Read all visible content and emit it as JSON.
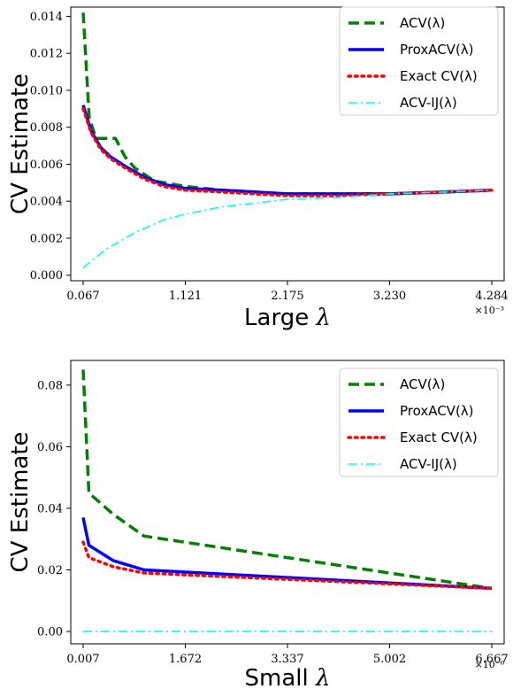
{
  "chart_data": [
    {
      "type": "line",
      "ylabel": "CV Estimate",
      "xlabel": "Large",
      "xlabel_symbol": "λ",
      "x_multiplier": "×10⁻³",
      "xticks": [
        "0.067",
        "1.121",
        "2.175",
        "3.230",
        "4.284"
      ],
      "yticks": [
        "0.000",
        "0.002",
        "0.004",
        "0.006",
        "0.008",
        "0.010",
        "0.012",
        "0.014"
      ],
      "xlim": [
        0.067,
        4.284
      ],
      "ylim": [
        -0.0003,
        0.0145
      ],
      "legend_position": "top-right",
      "grid": false,
      "series": [
        {
          "name": "ACV(λ)",
          "color": "#008000",
          "style": "dashed",
          "x": [
            0.067,
            0.13,
            0.2,
            0.3,
            0.4,
            0.5,
            0.6,
            0.8,
            1.121,
            1.5,
            2.175,
            2.7,
            3.23,
            3.8,
            4.284
          ],
          "y": [
            0.0142,
            0.0085,
            0.0074,
            0.0074,
            0.0074,
            0.0064,
            0.0058,
            0.0051,
            0.0048,
            0.0046,
            0.0044,
            0.0044,
            0.0044,
            0.0045,
            0.0046
          ]
        },
        {
          "name": "ProxACV(λ)",
          "color": "#0000ff",
          "style": "solid",
          "x": [
            0.067,
            0.15,
            0.25,
            0.35,
            0.5,
            0.7,
            0.9,
            1.121,
            1.5,
            2.175,
            2.7,
            3.23,
            3.8,
            4.284
          ],
          "y": [
            0.0092,
            0.0078,
            0.0069,
            0.0064,
            0.0059,
            0.0053,
            0.0049,
            0.0047,
            0.0046,
            0.0044,
            0.0044,
            0.0044,
            0.0045,
            0.0046
          ]
        },
        {
          "name": "Exact CV(λ)",
          "color": "#ff0000",
          "style": "dotted",
          "x": [
            0.067,
            0.15,
            0.25,
            0.35,
            0.5,
            0.7,
            0.9,
            1.121,
            1.5,
            2.175,
            2.7,
            3.23,
            3.8,
            4.284
          ],
          "y": [
            0.009,
            0.0077,
            0.0068,
            0.0063,
            0.0058,
            0.0052,
            0.0048,
            0.0046,
            0.0045,
            0.0043,
            0.0043,
            0.0044,
            0.0045,
            0.0046
          ]
        },
        {
          "name": "ACV-IJ(λ)",
          "color": "#00ffff",
          "style": "dashdot",
          "x": [
            0.067,
            0.3,
            0.6,
            0.9,
            1.121,
            1.5,
            2.175,
            2.7,
            3.23,
            3.8,
            4.284
          ],
          "y": [
            0.0004,
            0.0014,
            0.0023,
            0.003,
            0.0033,
            0.0037,
            0.0041,
            0.0042,
            0.0044,
            0.0045,
            0.0046
          ]
        }
      ]
    },
    {
      "type": "line",
      "ylabel": "CV Estimate",
      "xlabel": "Small",
      "xlabel_symbol": "λ",
      "x_multiplier": "×10⁻⁶",
      "xticks": [
        "0.007",
        "1.672",
        "3.337",
        "5.002",
        "6.667"
      ],
      "yticks": [
        "0.00",
        "0.02",
        "0.04",
        "0.06",
        "0.08"
      ],
      "xlim": [
        0.007,
        6.667
      ],
      "ylim": [
        -0.004,
        0.088
      ],
      "legend_position": "top-right",
      "grid": false,
      "series": [
        {
          "name": "ACV(λ)",
          "color": "#008000",
          "style": "dashed",
          "x": [
            0.007,
            0.1,
            0.5,
            1.0,
            6.667
          ],
          "y": [
            0.085,
            0.045,
            0.038,
            0.031,
            0.014
          ]
        },
        {
          "name": "ProxACV(λ)",
          "color": "#0000ff",
          "style": "solid",
          "x": [
            0.007,
            0.1,
            0.5,
            1.0,
            6.667
          ],
          "y": [
            0.037,
            0.028,
            0.023,
            0.02,
            0.014
          ]
        },
        {
          "name": "Exact CV(λ)",
          "color": "#ff0000",
          "style": "dotted",
          "x": [
            0.007,
            0.1,
            0.5,
            1.0,
            6.667
          ],
          "y": [
            0.029,
            0.024,
            0.021,
            0.019,
            0.014
          ]
        },
        {
          "name": "ACV-IJ(λ)",
          "color": "#00ffff",
          "style": "dashdot",
          "x": [
            0.007,
            6.667
          ],
          "y": [
            0.0,
            0.0
          ]
        }
      ]
    }
  ]
}
